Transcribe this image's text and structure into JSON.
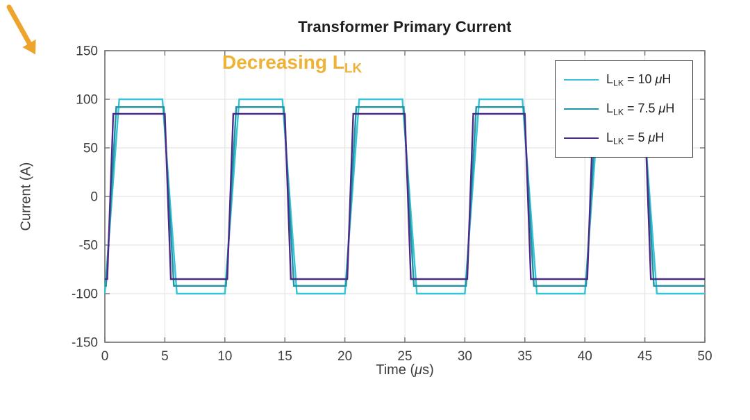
{
  "title": "Transformer Primary Current",
  "axes": {
    "ylabel": "Current (A)",
    "xlabel_pre": "Time (",
    "xlabel_mu": "μ",
    "xlabel_post": "s)"
  },
  "annotation": {
    "text_main": "Decreasing L",
    "text_sub": "LK",
    "text_color": "#efb234",
    "arrow_color": "#eda42d"
  },
  "legend": {
    "items": [
      {
        "sym": "L",
        "sub": "LK",
        "eq": " = 10 ",
        "mu": "μ",
        "unit": "H"
      },
      {
        "sym": "L",
        "sub": "LK",
        "eq": " = 7.5 ",
        "mu": "μ",
        "unit": "H"
      },
      {
        "sym": "L",
        "sub": "LK",
        "eq": " = 5 ",
        "mu": "μ",
        "unit": "H"
      }
    ]
  },
  "chart_data": {
    "type": "line",
    "title": "Transformer Primary Current",
    "xlabel": "Time (μs)",
    "ylabel": "Current (A)",
    "xlim": [
      0,
      50
    ],
    "ylim": [
      -150,
      150
    ],
    "xticks": [
      0,
      5,
      10,
      15,
      20,
      25,
      30,
      35,
      40,
      45,
      50
    ],
    "yticks": [
      -150,
      -100,
      -50,
      0,
      50,
      100,
      150
    ],
    "grid": true,
    "legend_position": "upper right",
    "annotation_text": "Decreasing L_LK",
    "series": [
      {
        "name": "L_LK = 10 μH",
        "color": "#35c3d5",
        "amplitude_A": 100,
        "points": [
          [
            0,
            -100
          ],
          [
            1.2,
            100
          ],
          [
            4.8,
            100
          ],
          [
            6.0,
            -100
          ],
          [
            10.0,
            -100
          ],
          [
            11.2,
            100
          ],
          [
            14.8,
            100
          ],
          [
            16.0,
            -100
          ],
          [
            20.0,
            -100
          ],
          [
            21.2,
            100
          ],
          [
            24.8,
            100
          ],
          [
            26.0,
            -100
          ],
          [
            30.0,
            -100
          ],
          [
            31.2,
            100
          ],
          [
            34.8,
            100
          ],
          [
            36.0,
            -100
          ],
          [
            40.0,
            -100
          ],
          [
            41.2,
            100
          ],
          [
            44.8,
            100
          ],
          [
            46.0,
            -100
          ],
          [
            50,
            -100
          ]
        ]
      },
      {
        "name": "L_LK = 7.5 μH",
        "color": "#1e94a4",
        "amplitude_A": 92,
        "points": [
          [
            0,
            -92
          ],
          [
            0.1,
            -92
          ],
          [
            0.95,
            92
          ],
          [
            4.9,
            92
          ],
          [
            5.75,
            -92
          ],
          [
            10.1,
            -92
          ],
          [
            10.95,
            92
          ],
          [
            14.9,
            92
          ],
          [
            15.75,
            -92
          ],
          [
            20.1,
            -92
          ],
          [
            20.95,
            92
          ],
          [
            24.9,
            92
          ],
          [
            25.75,
            -92
          ],
          [
            30.1,
            -92
          ],
          [
            30.95,
            92
          ],
          [
            34.9,
            92
          ],
          [
            35.75,
            -92
          ],
          [
            40.1,
            -92
          ],
          [
            40.95,
            92
          ],
          [
            44.9,
            92
          ],
          [
            45.75,
            -92
          ],
          [
            50,
            -92
          ]
        ]
      },
      {
        "name": "L_LK = 5 μH",
        "color": "#4c2a87",
        "amplitude_A": 85,
        "points": [
          [
            0,
            -85
          ],
          [
            0.2,
            -85
          ],
          [
            0.7,
            85
          ],
          [
            5.0,
            85
          ],
          [
            5.5,
            -85
          ],
          [
            10.2,
            -85
          ],
          [
            10.7,
            85
          ],
          [
            15.0,
            85
          ],
          [
            15.5,
            -85
          ],
          [
            20.2,
            -85
          ],
          [
            20.7,
            85
          ],
          [
            25.0,
            85
          ],
          [
            25.5,
            -85
          ],
          [
            30.2,
            -85
          ],
          [
            30.7,
            85
          ],
          [
            35.0,
            85
          ],
          [
            35.5,
            -85
          ],
          [
            40.2,
            -85
          ],
          [
            40.7,
            85
          ],
          [
            45.0,
            85
          ],
          [
            45.5,
            -85
          ],
          [
            50,
            -85
          ]
        ]
      }
    ]
  }
}
